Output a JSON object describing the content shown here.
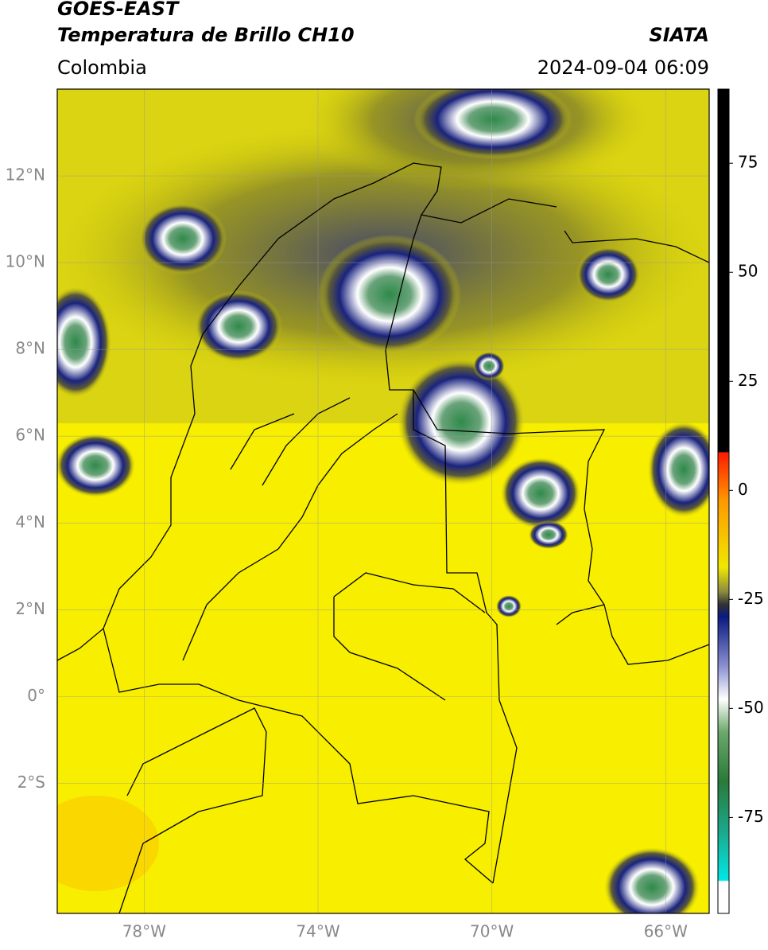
{
  "header": {
    "title": "GOES-EAST",
    "subtitle": "Temperatura de Brillo CH10",
    "organization": "SIATA",
    "region": "Colombia",
    "datetime": "2024-09-04 06:09"
  },
  "map": {
    "xlim": [
      -80,
      -65
    ],
    "ylim": [
      -5,
      14
    ],
    "xticks": [
      {
        "value": -78,
        "label": "78°W"
      },
      {
        "value": -74,
        "label": "74°W"
      },
      {
        "value": -70,
        "label": "70°W"
      },
      {
        "value": -66,
        "label": "66°W"
      }
    ],
    "yticks": [
      {
        "value": 12,
        "label": "12°N"
      },
      {
        "value": 10,
        "label": "10°N"
      },
      {
        "value": 8,
        "label": "8°N"
      },
      {
        "value": 6,
        "label": "6°N"
      },
      {
        "value": 4,
        "label": "4°N"
      },
      {
        "value": 2,
        "label": "2°N"
      },
      {
        "value": 0,
        "label": "0°"
      },
      {
        "value": -2,
        "label": "2°S"
      }
    ]
  },
  "colorbar": {
    "lim": [
      -97,
      92
    ],
    "ticks": [
      75,
      50,
      25,
      0,
      -25,
      -50,
      -75
    ]
  }
}
